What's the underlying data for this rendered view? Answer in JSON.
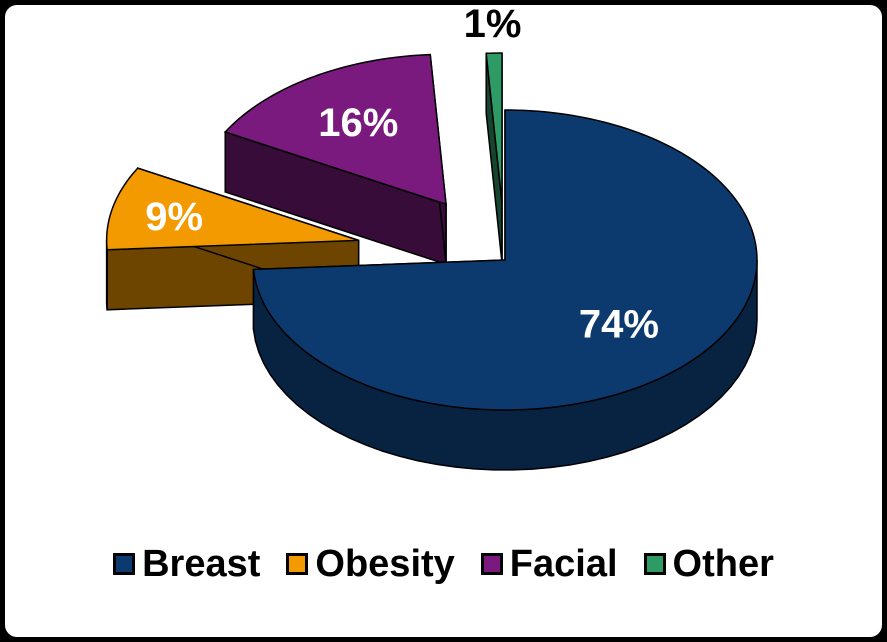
{
  "chart_data": {
    "type": "pie",
    "title": "",
    "categories": [
      "Breast",
      "Obesity",
      "Facial",
      "Other"
    ],
    "values": [
      74,
      9,
      16,
      1
    ],
    "value_labels": [
      "74%",
      "9%",
      "16%",
      "1%"
    ],
    "colors": [
      "#0d3a6e",
      "#f39a00",
      "#7a1a7e",
      "#2e9a66"
    ],
    "label_colors": [
      "#ffffff",
      "#ffffff",
      "#ffffff",
      "#000000"
    ],
    "three_d": true,
    "exploded": true,
    "legend_position": "bottom"
  },
  "legend": {
    "items": [
      {
        "label": "Breast",
        "color": "#0d3a6e"
      },
      {
        "label": "Obesity",
        "color": "#f39a00"
      },
      {
        "label": "Facial",
        "color": "#7a1a7e"
      },
      {
        "label": "Other",
        "color": "#2e9a66"
      }
    ]
  }
}
